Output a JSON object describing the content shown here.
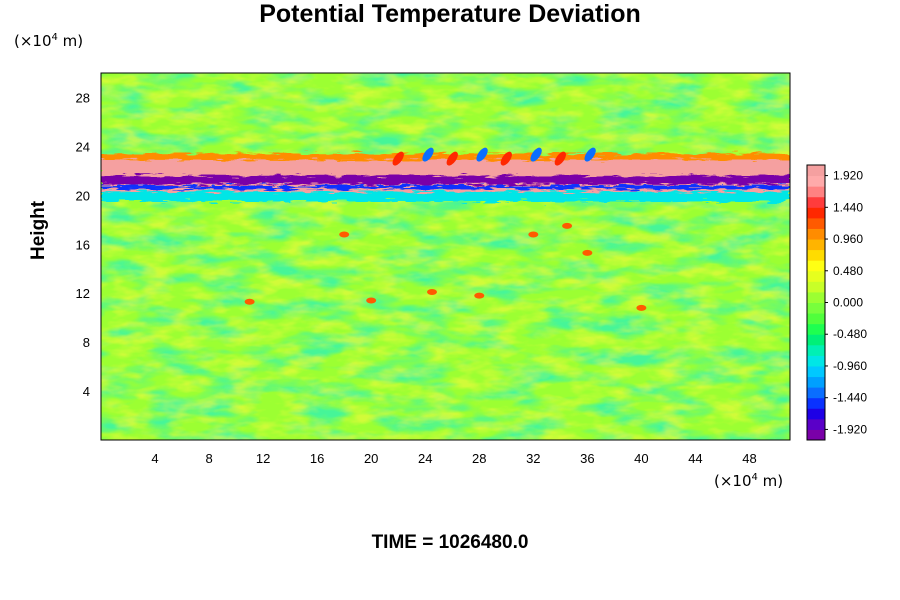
{
  "title": "Potential Temperature Deviation",
  "y_unit": {
    "prefix": "(×10",
    "exp": "4",
    "suffix": " m)"
  },
  "x_unit": {
    "prefix": "(×10",
    "exp": "4",
    "suffix": " m)"
  },
  "ylabel": "Height",
  "time_label": "TIME = 1026480.0",
  "chart_data": {
    "type": "heatmap",
    "title": "Potential Temperature Deviation",
    "xlabel": "",
    "ylabel": "Height",
    "x_unit": "(×10^4 m)",
    "y_unit": "(×10^4 m)",
    "xlim": [
      0,
      51
    ],
    "ylim": [
      0,
      30
    ],
    "x_ticks": [
      4,
      8,
      12,
      16,
      20,
      24,
      28,
      32,
      36,
      40,
      44,
      48
    ],
    "y_ticks": [
      4,
      8,
      12,
      16,
      20,
      24,
      28
    ],
    "colorbar": {
      "min": -2.08,
      "max": 2.08,
      "step": 0.16,
      "tick_labels": [
        "1.920",
        "1.440",
        "0.960",
        "0.480",
        "0.000",
        "-0.480",
        "-0.960",
        "-1.440",
        "-1.920"
      ],
      "colors_low_to_high": [
        "#7a00a8",
        "#5a00c8",
        "#1e00e6",
        "#0a32ff",
        "#0a6eff",
        "#00a0ff",
        "#00c8ff",
        "#00e6e6",
        "#00f0b4",
        "#00f078",
        "#1eff50",
        "#50ff3c",
        "#78ff3c",
        "#9cff32",
        "#c8ff28",
        "#e6ff1e",
        "#ffff14",
        "#ffdc00",
        "#ffb400",
        "#ff8c00",
        "#ff5a00",
        "#ff2800",
        "#ff3c3c",
        "#ff8282",
        "#ffaaaa",
        "#f5a0a0"
      ]
    },
    "field_features": [
      {
        "name": "warm layer",
        "y_range": [
          20.3,
          23.5
        ],
        "value": 1.9
      },
      {
        "name": "cold layer",
        "y_range": [
          19.6,
          21.6
        ],
        "value": -1.9
      },
      {
        "name": "background",
        "value": 0.0
      }
    ],
    "grid": false
  },
  "time": "1026480.0"
}
